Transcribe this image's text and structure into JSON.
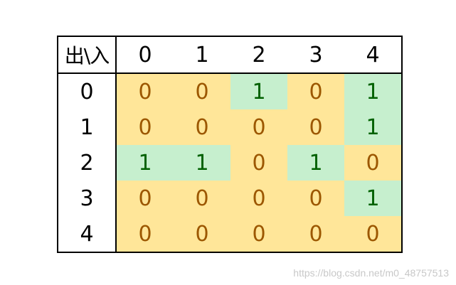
{
  "corner_label": "出\\入",
  "col_headers": [
    "0",
    "1",
    "2",
    "3",
    "4"
  ],
  "row_headers": [
    "0",
    "1",
    "2",
    "3",
    "4"
  ],
  "matrix": [
    [
      "0",
      "0",
      "1",
      "0",
      "1"
    ],
    [
      "0",
      "0",
      "0",
      "0",
      "1"
    ],
    [
      "1",
      "1",
      "0",
      "1",
      "0"
    ],
    [
      "0",
      "0",
      "0",
      "0",
      "1"
    ],
    [
      "0",
      "0",
      "0",
      "0",
      "0"
    ]
  ],
  "colors": {
    "zero_fill": "#ffe699",
    "zero_text": "#9c5700",
    "one_fill": "#c6efce",
    "one_text": "#006100"
  },
  "watermark": "https://blog.csdn.net/m0_48757513"
}
